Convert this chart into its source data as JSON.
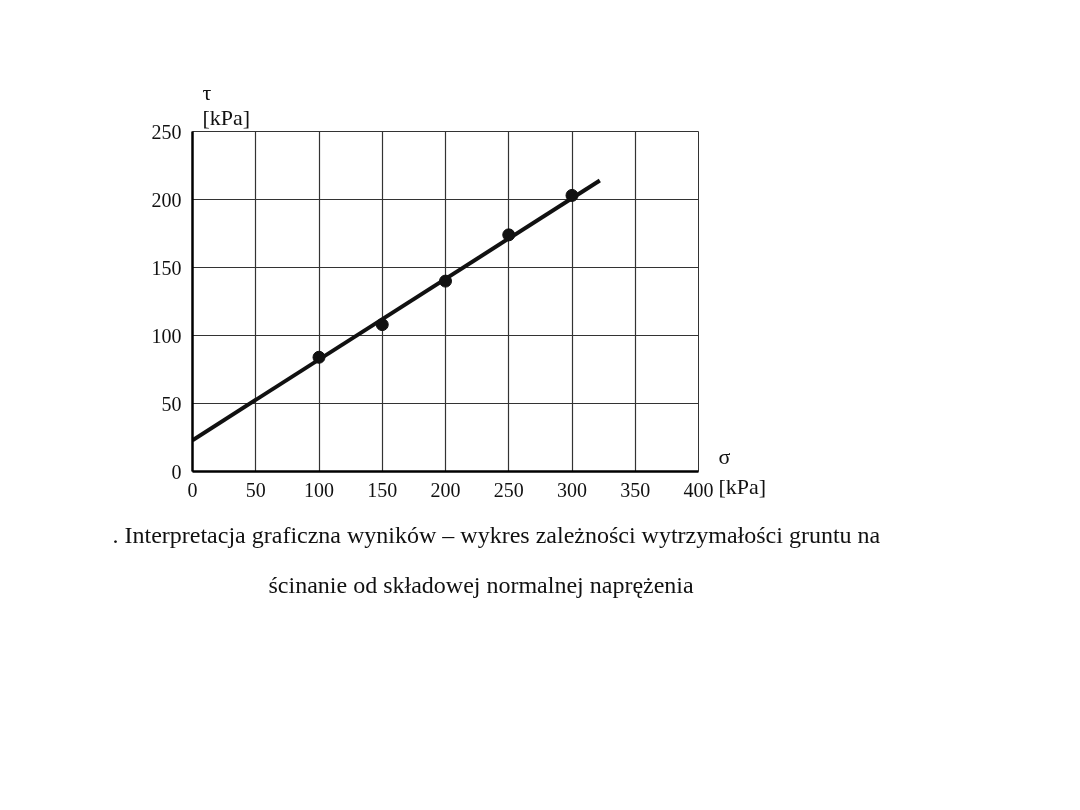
{
  "chart_data": {
    "type": "scatter",
    "xlabel": "σ [kPa]",
    "ylabel": "τ [kPa]",
    "xlim": [
      0,
      400
    ],
    "xticks": [
      0,
      50,
      100,
      150,
      200,
      250,
      300,
      350,
      400
    ],
    "ylim": [
      0,
      250
    ],
    "yticks": [
      0,
      50,
      100,
      150,
      200,
      250
    ],
    "grid": true,
    "marker": "circle",
    "series": [
      {
        "color": "#111111",
        "x": [
          100,
          150,
          200,
          250,
          300
        ],
        "values": [
          84,
          108,
          140,
          174,
          203
        ]
      },
      {
        "type": "line",
        "color": "#111111",
        "x": [
          0,
          322
        ],
        "values": [
          23,
          214
        ],
        "line_style": "solid",
        "marker": "none"
      }
    ],
    "annotations": [
      ". Interpretacja graficzna wyników – wykres zależności wytrzymałości gruntu na",
      "ścinanie od składowej normalnej naprężenia"
    ]
  }
}
